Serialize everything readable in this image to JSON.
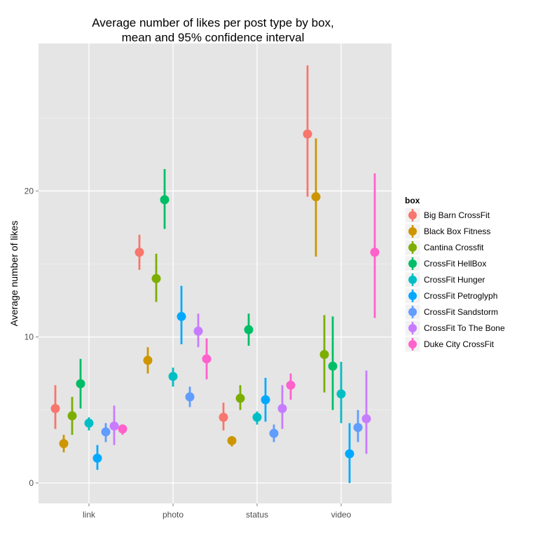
{
  "chart_data": {
    "type": "scatter",
    "subtype": "pointrange",
    "title": "Average number of likes per post type by box,\nmean and 95% confidence interval",
    "xlabel": "",
    "ylabel": "Average number of likes",
    "categories": [
      "link",
      "photo",
      "status",
      "video"
    ],
    "yticks": [
      0,
      10,
      20
    ],
    "ylim": [
      -1.4,
      30.1
    ],
    "grid": true,
    "legend_title": "box",
    "legend_position": "right",
    "series": [
      {
        "name": "Big Barn CrossFit",
        "color": "#F8766D",
        "points": [
          {
            "x": "link",
            "y": 5.1,
            "lo": 3.7,
            "hi": 6.7
          },
          {
            "x": "photo",
            "y": 15.8,
            "lo": 14.6,
            "hi": 17.0
          },
          {
            "x": "status",
            "y": 4.5,
            "lo": 3.6,
            "hi": 5.5
          },
          {
            "x": "video",
            "y": 23.9,
            "lo": 19.6,
            "hi": 28.6
          }
        ]
      },
      {
        "name": "Black Box Fitness",
        "color": "#CD9600",
        "points": [
          {
            "x": "link",
            "y": 2.7,
            "lo": 2.1,
            "hi": 3.3
          },
          {
            "x": "photo",
            "y": 8.4,
            "lo": 7.5,
            "hi": 9.3
          },
          {
            "x": "status",
            "y": 2.9,
            "lo": 2.5,
            "hi": 3.2
          },
          {
            "x": "video",
            "y": 19.6,
            "lo": 15.5,
            "hi": 23.6
          }
        ]
      },
      {
        "name": "Cantina Crossfit",
        "color": "#7CAE00",
        "points": [
          {
            "x": "link",
            "y": 4.6,
            "lo": 3.3,
            "hi": 5.9
          },
          {
            "x": "photo",
            "y": 14.0,
            "lo": 12.4,
            "hi": 15.7
          },
          {
            "x": "status",
            "y": 5.8,
            "lo": 5.0,
            "hi": 6.7
          },
          {
            "x": "video",
            "y": 8.8,
            "lo": 6.2,
            "hi": 11.5
          }
        ]
      },
      {
        "name": "CrossFit HellBox",
        "color": "#00BE67",
        "points": [
          {
            "x": "link",
            "y": 6.8,
            "lo": 5.1,
            "hi": 8.5
          },
          {
            "x": "photo",
            "y": 19.4,
            "lo": 17.4,
            "hi": 21.5
          },
          {
            "x": "status",
            "y": 10.5,
            "lo": 9.4,
            "hi": 11.6
          },
          {
            "x": "video",
            "y": 8.0,
            "lo": 5.0,
            "hi": 11.4
          }
        ]
      },
      {
        "name": "CrossFit Hunger",
        "color": "#00BFC4",
        "points": [
          {
            "x": "link",
            "y": 4.1,
            "lo": 3.6,
            "hi": 4.5
          },
          {
            "x": "photo",
            "y": 7.3,
            "lo": 6.6,
            "hi": 7.9
          },
          {
            "x": "status",
            "y": 4.5,
            "lo": 4.0,
            "hi": 4.9
          },
          {
            "x": "video",
            "y": 6.1,
            "lo": 4.1,
            "hi": 8.3
          }
        ]
      },
      {
        "name": "CrossFit Petroglyph",
        "color": "#00A9FF",
        "points": [
          {
            "x": "link",
            "y": 1.7,
            "lo": 0.9,
            "hi": 2.6
          },
          {
            "x": "photo",
            "y": 11.4,
            "lo": 9.5,
            "hi": 13.5
          },
          {
            "x": "status",
            "y": 5.7,
            "lo": 4.2,
            "hi": 7.2
          },
          {
            "x": "video",
            "y": 2.0,
            "lo": 0.0,
            "hi": 4.1
          }
        ]
      },
      {
        "name": "CrossFit Sandstorm",
        "color": "#619CFF",
        "points": [
          {
            "x": "link",
            "y": 3.5,
            "lo": 2.8,
            "hi": 4.1
          },
          {
            "x": "photo",
            "y": 5.9,
            "lo": 5.2,
            "hi": 6.6
          },
          {
            "x": "status",
            "y": 3.4,
            "lo": 2.8,
            "hi": 4.0
          },
          {
            "x": "video",
            "y": 3.8,
            "lo": 2.8,
            "hi": 5.0
          }
        ]
      },
      {
        "name": "CrossFit To The Bone",
        "color": "#C77CFF",
        "points": [
          {
            "x": "link",
            "y": 3.9,
            "lo": 2.6,
            "hi": 5.3
          },
          {
            "x": "photo",
            "y": 10.4,
            "lo": 9.3,
            "hi": 11.6
          },
          {
            "x": "status",
            "y": 5.1,
            "lo": 3.7,
            "hi": 6.7
          },
          {
            "x": "video",
            "y": 4.4,
            "lo": 2.0,
            "hi": 7.7
          }
        ]
      },
      {
        "name": "Duke City CrossFit",
        "color": "#FF61CC",
        "points": [
          {
            "x": "link",
            "y": 3.7,
            "lo": 3.3,
            "hi": 4.0
          },
          {
            "x": "photo",
            "y": 8.5,
            "lo": 7.1,
            "hi": 9.9
          },
          {
            "x": "status",
            "y": 6.7,
            "lo": 5.7,
            "hi": 7.5
          },
          {
            "x": "video",
            "y": 15.8,
            "lo": 11.3,
            "hi": 21.2
          }
        ]
      }
    ]
  }
}
